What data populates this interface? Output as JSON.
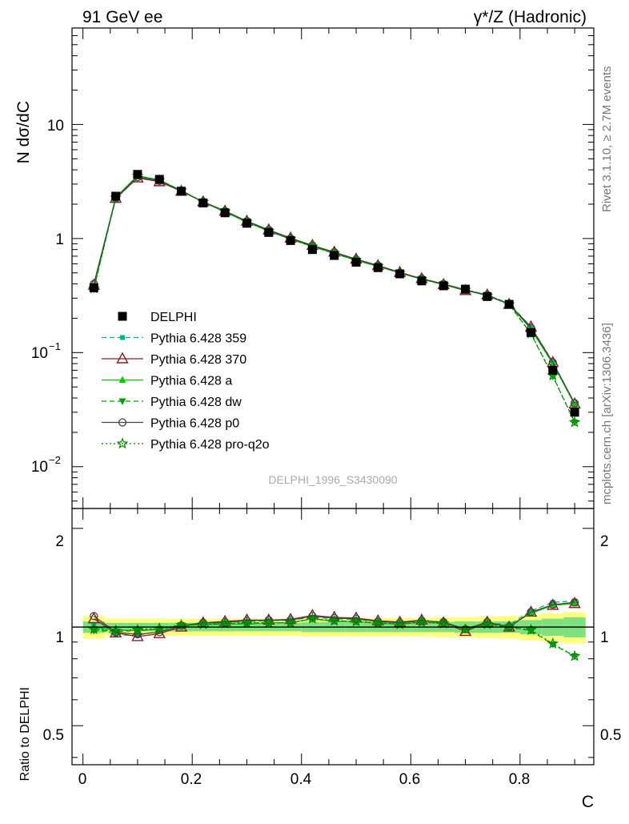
{
  "header": {
    "left_title": "91 GeV ee",
    "right_title": "γ*/Z (Hadronic)"
  },
  "side_labels": {
    "rivet": "Rivet 3.1.10, ≥ 2.7M events",
    "mcplots": "mcplots.cern.ch [arXiv:1306.3436]"
  },
  "analysis_id": "DELPHI_1996_S3430090",
  "axes": {
    "top_ylabel": "N dσ/dC",
    "bottom_ylabel": "Ratio to DELPHI",
    "xlabel": "C",
    "x_ticks": [
      "0",
      "0.2",
      "0.4",
      "0.6",
      "0.8"
    ],
    "top_y_ticks": [
      "10",
      "1",
      "10",
      "10"
    ],
    "top_y_tick_exponents": [
      "",
      "",
      "−1",
      "−2"
    ],
    "bottom_y_ticks": [
      "2",
      "1",
      "0.5"
    ]
  },
  "legend": {
    "items": [
      {
        "label": "DELPHI",
        "color": "#000000",
        "marker": "square",
        "dash": "none"
      },
      {
        "label": "Pythia 6.428 359",
        "color": "#00b28b",
        "marker": "small-square",
        "dash": "6,4"
      },
      {
        "label": "Pythia 6.428 370",
        "color": "#8b1a2b",
        "marker": "open-triangle",
        "dash": "solid"
      },
      {
        "label": "Pythia 6.428 a",
        "color": "#00cc00",
        "marker": "triangle-up",
        "dash": "solid"
      },
      {
        "label": "Pythia 6.428 dw",
        "color": "#00a000",
        "marker": "triangle-down",
        "dash": "6,4"
      },
      {
        "label": "Pythia 6.428 p0",
        "color": "#444444",
        "marker": "open-circle",
        "dash": "solid"
      },
      {
        "label": "Pythia 6.428 pro-q2o",
        "color": "#008800",
        "marker": "open-star",
        "dash": "2,3"
      }
    ]
  },
  "chart_data": {
    "type": "line",
    "x": [
      0.02,
      0.06,
      0.1,
      0.14,
      0.18,
      0.22,
      0.26,
      0.3,
      0.34,
      0.38,
      0.42,
      0.46,
      0.5,
      0.54,
      0.58,
      0.62,
      0.66,
      0.7,
      0.74,
      0.78,
      0.82,
      0.86,
      0.9
    ],
    "xlim": [
      -0.02,
      0.935
    ],
    "top_ylim": [
      0.0043,
      70
    ],
    "top_yscale": "log",
    "bottom_ylim": [
      0.38,
      2.3
    ],
    "bottom_yscale": "log",
    "series": [
      {
        "name": "DELPHI",
        "values": [
          0.37,
          2.35,
          3.65,
          3.3,
          2.6,
          2.05,
          1.68,
          1.36,
          1.13,
          0.96,
          0.8,
          0.71,
          0.62,
          0.555,
          0.49,
          0.425,
          0.385,
          0.36,
          0.31,
          0.265,
          0.15,
          0.07,
          0.03
        ],
        "ratio": [
          1,
          1,
          1,
          1,
          1,
          1,
          1,
          1,
          1,
          1,
          1,
          1,
          1,
          1,
          1,
          1,
          1,
          1,
          1,
          1,
          1,
          1,
          1
        ]
      },
      {
        "name": "Pythia 6.428 359",
        "values": [
          0.375,
          2.22,
          3.45,
          3.2,
          2.62,
          2.1,
          1.73,
          1.41,
          1.18,
          1.01,
          0.86,
          0.75,
          0.655,
          0.58,
          0.505,
          0.445,
          0.4,
          0.355,
          0.32,
          0.27,
          0.168,
          0.083,
          0.0355
        ],
        "ratio": [
          1.01,
          0.945,
          0.945,
          0.97,
          1.01,
          1.025,
          1.03,
          1.04,
          1.045,
          1.05,
          1.07,
          1.06,
          1.055,
          1.04,
          1.03,
          1.045,
          1.035,
          0.985,
          1.03,
          1.015,
          1.12,
          1.19,
          1.2
        ]
      },
      {
        "name": "Pythia 6.428 370",
        "values": [
          0.39,
          2.25,
          3.4,
          3.15,
          2.6,
          2.1,
          1.74,
          1.42,
          1.19,
          1.01,
          0.87,
          0.76,
          0.66,
          0.58,
          0.505,
          0.445,
          0.395,
          0.35,
          0.32,
          0.265,
          0.168,
          0.082,
          0.0355
        ],
        "ratio": [
          1.06,
          0.96,
          0.935,
          0.955,
          1.0,
          1.03,
          1.04,
          1.05,
          1.05,
          1.055,
          1.085,
          1.07,
          1.065,
          1.045,
          1.035,
          1.05,
          1.03,
          0.97,
          1.035,
          1.0,
          1.11,
          1.165,
          1.18
        ]
      },
      {
        "name": "Pythia 6.428 a",
        "values": [
          0.37,
          2.3,
          3.55,
          3.25,
          2.63,
          2.08,
          1.71,
          1.39,
          1.16,
          0.99,
          0.85,
          0.74,
          0.645,
          0.57,
          0.5,
          0.44,
          0.395,
          0.355,
          0.315,
          0.268,
          0.16,
          0.08,
          0.035
        ],
        "ratio": [
          1.0,
          0.98,
          0.975,
          0.985,
          1.01,
          1.015,
          1.02,
          1.02,
          1.03,
          1.03,
          1.06,
          1.04,
          1.04,
          1.025,
          1.02,
          1.035,
          1.025,
          0.985,
          1.02,
          1.01,
          1.1,
          1.165,
          1.18
        ]
      },
      {
        "name": "Pythia 6.428 dw",
        "values": [
          0.36,
          2.28,
          3.55,
          3.25,
          2.64,
          2.09,
          1.72,
          1.4,
          1.16,
          0.99,
          0.85,
          0.74,
          0.645,
          0.57,
          0.5,
          0.44,
          0.395,
          0.355,
          0.315,
          0.265,
          0.146,
          0.062,
          0.0245
        ],
        "ratio": [
          0.975,
          0.97,
          0.975,
          0.985,
          1.015,
          1.02,
          1.025,
          1.03,
          1.03,
          1.03,
          1.06,
          1.045,
          1.04,
          1.03,
          1.02,
          1.035,
          1.025,
          0.985,
          1.02,
          1.0,
          0.975,
          0.885,
          0.815
        ]
      },
      {
        "name": "Pythia 6.428 p0",
        "values": [
          0.4,
          2.27,
          3.45,
          3.2,
          2.6,
          2.1,
          1.74,
          1.42,
          1.19,
          1.0,
          0.87,
          0.76,
          0.655,
          0.58,
          0.5,
          0.445,
          0.4,
          0.355,
          0.32,
          0.265,
          0.165,
          0.082,
          0.036
        ],
        "ratio": [
          1.08,
          0.965,
          0.95,
          0.965,
          1.01,
          1.03,
          1.035,
          1.045,
          1.05,
          1.05,
          1.08,
          1.065,
          1.06,
          1.04,
          1.03,
          1.045,
          1.035,
          0.985,
          1.035,
          1.0,
          1.11,
          1.17,
          1.19
        ]
      },
      {
        "name": "Pythia 6.428 pro-q2o",
        "values": [
          0.365,
          2.28,
          3.55,
          3.25,
          2.64,
          2.09,
          1.72,
          1.4,
          1.16,
          0.99,
          0.85,
          0.74,
          0.645,
          0.57,
          0.5,
          0.44,
          0.395,
          0.355,
          0.315,
          0.265,
          0.147,
          0.063,
          0.0245
        ],
        "ratio": [
          0.985,
          0.975,
          0.98,
          0.99,
          1.015,
          1.02,
          1.025,
          1.03,
          1.03,
          1.03,
          1.06,
          1.045,
          1.04,
          1.03,
          1.02,
          1.035,
          1.025,
          0.985,
          1.02,
          1.0,
          0.98,
          0.89,
          0.815
        ]
      }
    ],
    "uncertainty_band": {
      "inner": [
        0.04,
        0.03,
        0.03,
        0.03,
        0.03,
        0.03,
        0.03,
        0.03,
        0.03,
        0.03,
        0.035,
        0.035,
        0.035,
        0.035,
        0.035,
        0.035,
        0.035,
        0.04,
        0.04,
        0.04,
        0.05,
        0.06,
        0.07
      ],
      "outer": [
        0.08,
        0.06,
        0.06,
        0.06,
        0.06,
        0.06,
        0.06,
        0.06,
        0.06,
        0.06,
        0.065,
        0.065,
        0.065,
        0.065,
        0.065,
        0.065,
        0.07,
        0.07,
        0.075,
        0.08,
        0.09,
        0.1,
        0.11
      ],
      "inner_color": "#7fe07f",
      "outer_color": "#ffff80"
    }
  }
}
